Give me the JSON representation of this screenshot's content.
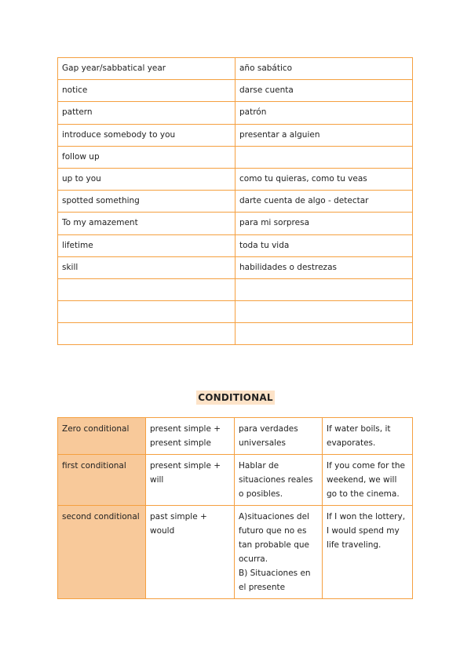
{
  "vocabulary": {
    "rows": [
      [
        "Gap year/sabbatical year",
        "año sabático"
      ],
      [
        "notice",
        "darse cuenta"
      ],
      [
        "pattern",
        "patrón"
      ],
      [
        "introduce somebody to you",
        "presentar a alguien"
      ],
      [
        "follow up",
        ""
      ],
      [
        "up to you",
        "como tu quieras, como tu veas"
      ],
      [
        "spotted something",
        "darte cuenta de algo - detectar"
      ],
      [
        "To my amazement",
        "para mi sorpresa"
      ],
      [
        "lifetime",
        "toda tu vida"
      ],
      [
        "skill",
        "habilidades o destrezas"
      ],
      [
        "",
        ""
      ],
      [
        "",
        ""
      ],
      [
        "",
        ""
      ]
    ]
  },
  "conditional": {
    "title": "CONDITIONAL",
    "rows": [
      [
        "Zero conditional",
        "present simple + present simple",
        "para verdades universales",
        "If water boils, it evaporates."
      ],
      [
        "first conditional",
        "present simple + will",
        "Hablar de situaciones reales o posibles.",
        "If you come for the weekend, we will go to the cinema."
      ],
      [
        "second conditional",
        "past simple + would",
        "A)situaciones del futuro que no es tan probable que ocurra.\nB) Situaciones en el presente",
        "If I won the lottery, I would spend my life traveling."
      ]
    ]
  },
  "colors": {
    "border": "#f5a040",
    "highlight": "#f8c99a",
    "title_bg": "#fde3c8"
  }
}
